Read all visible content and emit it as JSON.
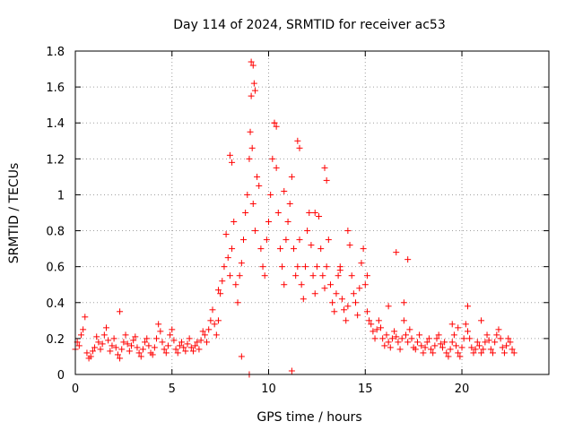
{
  "chart_data": {
    "type": "scatter",
    "title": "Day 114 of 2024, SRMTID for receiver ac53",
    "xlabel": "GPS time / hours",
    "ylabel": "SRMTID / TECUs",
    "xlim": [
      0,
      24.5
    ],
    "ylim": [
      0,
      1.8
    ],
    "x_ticks": [
      0,
      5,
      10,
      15,
      20
    ],
    "x_tick_labels": [
      "0",
      "5",
      "10",
      "15",
      "20"
    ],
    "y_ticks": [
      0,
      0.2,
      0.4,
      0.6,
      0.8,
      1,
      1.2,
      1.4,
      1.6,
      1.8
    ],
    "y_tick_labels": [
      "0",
      "0.2",
      "0.4",
      "0.6",
      "0.8",
      "1",
      "1.2",
      "1.4",
      "1.6",
      "1.8"
    ],
    "grid": true,
    "marker": "+",
    "color": "#ff0000",
    "series": [
      {
        "name": "SRMTID",
        "x": [
          0.0,
          0.1,
          0.2,
          0.3,
          0.4,
          0.5,
          0.6,
          0.7,
          0.8,
          0.9,
          1.0,
          1.1,
          1.2,
          1.3,
          1.4,
          1.5,
          1.6,
          1.7,
          1.8,
          1.9,
          2.0,
          2.1,
          2.2,
          2.3,
          2.4,
          2.5,
          2.6,
          2.7,
          2.8,
          2.9,
          3.0,
          3.1,
          3.2,
          3.3,
          3.4,
          3.5,
          3.6,
          3.7,
          3.8,
          3.9,
          4.0,
          4.1,
          4.2,
          4.3,
          4.4,
          4.5,
          4.6,
          4.7,
          4.8,
          4.9,
          5.0,
          5.1,
          5.2,
          5.3,
          5.4,
          5.5,
          5.6,
          5.7,
          5.8,
          5.9,
          6.0,
          6.1,
          6.2,
          6.3,
          6.4,
          6.5,
          6.6,
          6.7,
          6.8,
          6.9,
          7.0,
          7.1,
          7.2,
          7.3,
          7.4,
          7.5,
          7.6,
          7.7,
          7.8,
          7.9,
          8.0,
          8.1,
          8.2,
          8.3,
          8.4,
          8.5,
          8.6,
          8.7,
          8.8,
          8.9,
          9.0,
          9.05,
          9.1,
          9.15,
          9.2,
          9.3,
          9.4,
          9.5,
          9.6,
          9.7,
          9.8,
          9.9,
          10.0,
          10.1,
          10.2,
          10.3,
          10.4,
          10.5,
          10.6,
          10.7,
          10.8,
          10.9,
          11.0,
          11.1,
          11.2,
          11.3,
          11.4,
          11.5,
          11.6,
          11.7,
          11.8,
          11.9,
          12.0,
          12.1,
          12.2,
          12.3,
          12.4,
          12.5,
          12.6,
          12.7,
          12.8,
          12.9,
          13.0,
          13.1,
          13.2,
          13.3,
          13.4,
          13.5,
          13.6,
          13.7,
          13.8,
          13.9,
          14.0,
          14.1,
          14.2,
          14.3,
          14.4,
          14.5,
          14.6,
          14.7,
          14.8,
          14.9,
          15.0,
          15.1,
          15.2,
          15.3,
          15.4,
          15.5,
          15.6,
          15.7,
          15.8,
          15.9,
          16.0,
          16.1,
          16.2,
          16.3,
          16.4,
          16.5,
          16.6,
          16.7,
          16.8,
          16.9,
          17.0,
          17.1,
          17.2,
          17.3,
          17.4,
          17.5,
          17.6,
          17.7,
          17.8,
          17.9,
          18.0,
          18.1,
          18.2,
          18.3,
          18.4,
          18.5,
          18.6,
          18.7,
          18.8,
          18.9,
          19.0,
          19.1,
          19.2,
          19.3,
          19.4,
          19.5,
          19.6,
          19.7,
          19.8,
          19.9,
          20.0,
          20.1,
          20.2,
          20.3,
          20.4,
          20.5,
          20.6,
          20.7,
          20.8,
          20.9,
          21.0,
          21.1,
          21.2,
          21.3,
          21.4,
          21.5,
          21.6,
          21.7,
          21.8,
          21.9,
          22.0,
          22.1,
          22.2,
          22.3,
          22.4,
          22.5,
          22.6,
          22.7,
          9.1,
          9.2,
          9.25,
          9.3,
          10.3,
          10.4,
          11.5,
          11.6,
          12.9,
          13.0,
          8.0,
          8.1,
          14.1,
          16.6,
          17.2,
          7.4,
          15.1,
          16.2,
          17.0,
          2.3,
          19.5,
          19.8,
          20.3,
          21.0,
          9.0,
          11.2,
          12.4,
          8.6,
          10.8,
          13.7
        ],
        "y": [
          0.14,
          0.18,
          0.16,
          0.22,
          0.25,
          0.32,
          0.12,
          0.09,
          0.1,
          0.13,
          0.15,
          0.21,
          0.18,
          0.14,
          0.17,
          0.22,
          0.26,
          0.19,
          0.13,
          0.16,
          0.2,
          0.15,
          0.11,
          0.09,
          0.14,
          0.18,
          0.22,
          0.17,
          0.13,
          0.16,
          0.19,
          0.21,
          0.15,
          0.12,
          0.1,
          0.14,
          0.18,
          0.2,
          0.16,
          0.12,
          0.11,
          0.15,
          0.2,
          0.28,
          0.24,
          0.18,
          0.14,
          0.12,
          0.16,
          0.22,
          0.25,
          0.19,
          0.14,
          0.12,
          0.16,
          0.18,
          0.15,
          0.13,
          0.17,
          0.2,
          0.15,
          0.13,
          0.16,
          0.18,
          0.14,
          0.19,
          0.24,
          0.22,
          0.18,
          0.25,
          0.3,
          0.36,
          0.28,
          0.22,
          0.3,
          0.45,
          0.52,
          0.6,
          0.78,
          0.65,
          0.55,
          0.7,
          0.85,
          0.5,
          0.4,
          0.55,
          0.62,
          0.75,
          0.9,
          1.0,
          1.2,
          1.35,
          1.55,
          1.26,
          0.95,
          0.8,
          1.1,
          1.05,
          0.7,
          0.6,
          0.55,
          0.75,
          0.85,
          1.0,
          1.2,
          1.4,
          1.15,
          0.9,
          0.7,
          0.6,
          0.5,
          0.75,
          0.85,
          0.95,
          1.1,
          0.7,
          0.55,
          0.6,
          0.75,
          0.5,
          0.42,
          0.6,
          0.8,
          0.9,
          0.72,
          0.55,
          0.45,
          0.6,
          0.88,
          0.7,
          0.55,
          0.48,
          0.6,
          0.75,
          0.5,
          0.4,
          0.35,
          0.45,
          0.55,
          0.6,
          0.42,
          0.36,
          0.3,
          0.38,
          0.72,
          0.55,
          0.45,
          0.4,
          0.33,
          0.48,
          0.62,
          0.7,
          0.5,
          0.35,
          0.3,
          0.28,
          0.24,
          0.2,
          0.25,
          0.3,
          0.26,
          0.2,
          0.16,
          0.22,
          0.18,
          0.15,
          0.2,
          0.24,
          0.21,
          0.18,
          0.14,
          0.2,
          0.3,
          0.22,
          0.18,
          0.25,
          0.2,
          0.15,
          0.14,
          0.18,
          0.22,
          0.16,
          0.12,
          0.15,
          0.18,
          0.2,
          0.14,
          0.12,
          0.16,
          0.2,
          0.22,
          0.17,
          0.15,
          0.18,
          0.12,
          0.1,
          0.14,
          0.18,
          0.22,
          0.16,
          0.12,
          0.1,
          0.15,
          0.2,
          0.28,
          0.24,
          0.2,
          0.15,
          0.12,
          0.14,
          0.18,
          0.16,
          0.12,
          0.14,
          0.18,
          0.22,
          0.19,
          0.14,
          0.12,
          0.18,
          0.22,
          0.25,
          0.2,
          0.15,
          0.12,
          0.16,
          0.2,
          0.18,
          0.14,
          0.12,
          1.74,
          1.72,
          1.62,
          1.58,
          1.4,
          1.38,
          1.3,
          1.26,
          1.15,
          1.08,
          1.22,
          1.18,
          0.8,
          0.68,
          0.64,
          0.47,
          0.55,
          0.38,
          0.4,
          0.35,
          0.28,
          0.26,
          0.38,
          0.3,
          0.0,
          0.02,
          0.9,
          0.1,
          1.02,
          0.58
        ]
      }
    ]
  }
}
